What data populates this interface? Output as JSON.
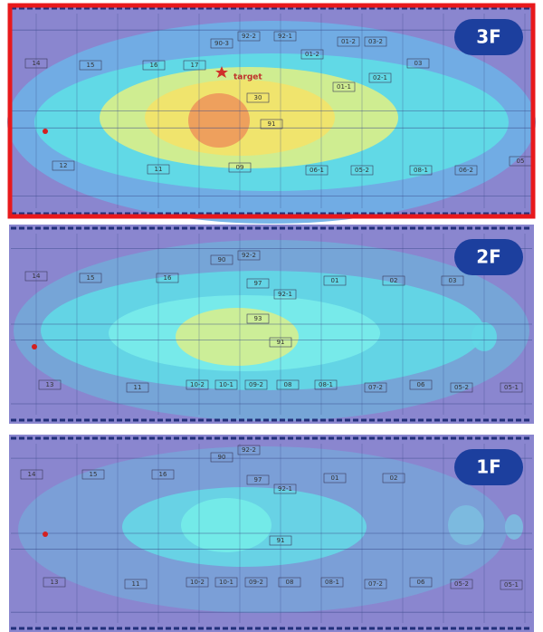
{
  "floors": [
    {
      "label": "3F",
      "marker_label": "target",
      "rooms": [
        "14",
        "15",
        "16",
        "17",
        "90-3",
        "92-2",
        "92-1",
        "01-2",
        "01-2",
        "03-2",
        "03",
        "01-1",
        "02-1",
        "30",
        "91",
        "12",
        "11",
        "09",
        "06-1",
        "05-2",
        "08-1",
        "06-2",
        "05"
      ]
    },
    {
      "label": "2F",
      "rooms": [
        "14",
        "15",
        "16",
        "90",
        "92-2",
        "97",
        "92-1",
        "01",
        "02",
        "03",
        "93",
        "91",
        "13",
        "11",
        "10-2",
        "10-1",
        "09-2",
        "08",
        "08-1",
        "07-2",
        "06",
        "05-2",
        "05-1"
      ]
    },
    {
      "label": "1F",
      "rooms": [
        "14",
        "15",
        "16",
        "90",
        "92-2",
        "97",
        "92-1",
        "01",
        "02",
        "91",
        "13",
        "11",
        "10-2",
        "10-1",
        "09-2",
        "08",
        "08-1",
        "07-2",
        "06",
        "05-2",
        "05-1"
      ]
    }
  ]
}
